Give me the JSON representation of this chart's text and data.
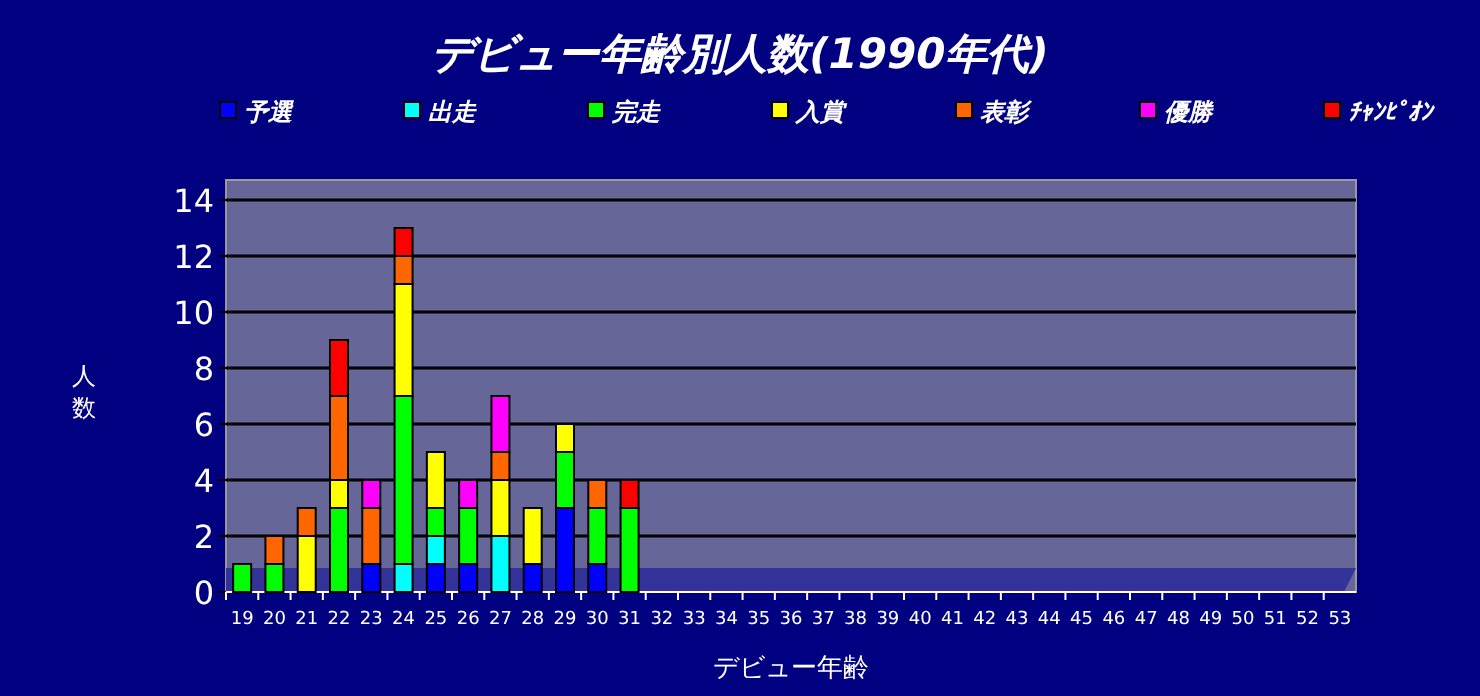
{
  "chart_data": {
    "type": "bar",
    "stacked": true,
    "title": "デビュー年齢別人数(1990年代)",
    "xlabel": "デビュー年齢",
    "ylabel": "人数",
    "categories": [
      "19",
      "20",
      "21",
      "22",
      "23",
      "24",
      "25",
      "26",
      "27",
      "28",
      "29",
      "30",
      "31",
      "32",
      "33",
      "34",
      "35",
      "36",
      "37",
      "38",
      "39",
      "40",
      "41",
      "42",
      "43",
      "44",
      "45",
      "46",
      "47",
      "48",
      "49",
      "50",
      "51",
      "52",
      "53"
    ],
    "series": [
      {
        "name": "予選",
        "color": "#0000ff",
        "values": [
          0,
          0,
          0,
          0,
          1,
          0,
          1,
          1,
          0,
          1,
          3,
          1,
          0,
          0,
          0,
          0,
          0,
          0,
          0,
          0,
          0,
          0,
          0,
          0,
          0,
          0,
          0,
          0,
          0,
          0,
          0,
          0,
          0,
          0,
          0
        ]
      },
      {
        "name": "出走",
        "color": "#00ffff",
        "values": [
          0,
          0,
          0,
          0,
          0,
          1,
          1,
          0,
          2,
          0,
          0,
          0,
          0,
          0,
          0,
          0,
          0,
          0,
          0,
          0,
          0,
          0,
          0,
          0,
          0,
          0,
          0,
          0,
          0,
          0,
          0,
          0,
          0,
          0,
          0
        ]
      },
      {
        "name": "完走",
        "color": "#00ff00",
        "values": [
          1,
          1,
          0,
          3,
          0,
          6,
          1,
          2,
          0,
          0,
          2,
          2,
          3,
          0,
          0,
          0,
          0,
          0,
          0,
          0,
          0,
          0,
          0,
          0,
          0,
          0,
          0,
          0,
          0,
          0,
          0,
          0,
          0,
          0,
          0
        ]
      },
      {
        "name": "入賞",
        "color": "#ffff00",
        "values": [
          0,
          0,
          2,
          1,
          0,
          4,
          2,
          0,
          2,
          2,
          1,
          0,
          0,
          0,
          0,
          0,
          0,
          0,
          0,
          0,
          0,
          0,
          0,
          0,
          0,
          0,
          0,
          0,
          0,
          0,
          0,
          0,
          0,
          0,
          0
        ]
      },
      {
        "name": "表彰",
        "color": "#ff6600",
        "values": [
          0,
          1,
          1,
          3,
          2,
          1,
          0,
          0,
          1,
          0,
          0,
          1,
          0,
          0,
          0,
          0,
          0,
          0,
          0,
          0,
          0,
          0,
          0,
          0,
          0,
          0,
          0,
          0,
          0,
          0,
          0,
          0,
          0,
          0,
          0
        ]
      },
      {
        "name": "優勝",
        "color": "#ff00ff",
        "values": [
          0,
          0,
          0,
          0,
          1,
          0,
          0,
          1,
          2,
          0,
          0,
          0,
          0,
          0,
          0,
          0,
          0,
          0,
          0,
          0,
          0,
          0,
          0,
          0,
          0,
          0,
          0,
          0,
          0,
          0,
          0,
          0,
          0,
          0,
          0
        ]
      },
      {
        "name": "ﾁｬﾝﾋﾟｵﾝ",
        "color": "#ff0000",
        "values": [
          0,
          0,
          0,
          2,
          0,
          1,
          0,
          0,
          0,
          0,
          0,
          0,
          1,
          0,
          0,
          0,
          0,
          0,
          0,
          0,
          0,
          0,
          0,
          0,
          0,
          0,
          0,
          0,
          0,
          0,
          0,
          0,
          0,
          0,
          0
        ]
      }
    ],
    "ylim": [
      0,
      14
    ],
    "yticks": [
      0,
      2,
      4,
      6,
      8,
      10,
      12,
      14
    ],
    "grid": "y",
    "legend": "top"
  }
}
